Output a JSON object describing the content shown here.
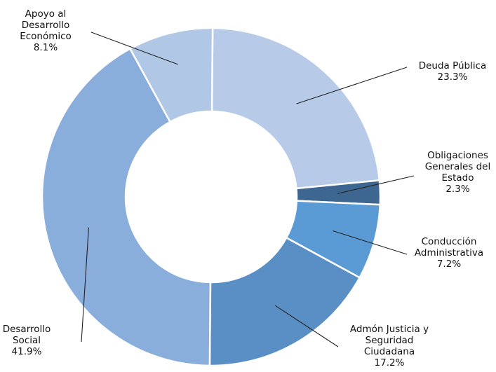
{
  "chart_data": {
    "type": "pie",
    "title": "",
    "donut": true,
    "slices": [
      {
        "name": "Deuda Pública",
        "label_lines": [
          "Deuda Pública"
        ],
        "value": 23.3,
        "pct_text": "23.3%",
        "color": "#b7cbe8"
      },
      {
        "name": "Obligaciones Generales del Estado",
        "label_lines": [
          "Obligaciones",
          "Generales del",
          "Estado"
        ],
        "value": 2.3,
        "pct_text": "2.3%",
        "color": "#3d6690"
      },
      {
        "name": "Conducción Administrativa",
        "label_lines": [
          "Conducción",
          "Administrativa"
        ],
        "value": 7.2,
        "pct_text": "7.2%",
        "color": "#5b9bd5"
      },
      {
        "name": "Admón Justicia y Seguridad Ciudadana",
        "label_lines": [
          "Admón Justicia y",
          "Seguridad",
          "Ciudadana"
        ],
        "value": 17.2,
        "pct_text": "17.2%",
        "color": "#5a8fc6"
      },
      {
        "name": "Desarrollo Social",
        "label_lines": [
          "Desarrollo",
          "Social"
        ],
        "value": 41.9,
        "pct_text": "41.9%",
        "color": "#8aaedc"
      },
      {
        "name": "Apoyo al Desarrollo Económico",
        "label_lines": [
          "Apoyo al",
          "Desarrollo",
          "Económico"
        ],
        "value": 8.1,
        "pct_text": "8.1%",
        "color": "#b0c7e6"
      }
    ]
  }
}
